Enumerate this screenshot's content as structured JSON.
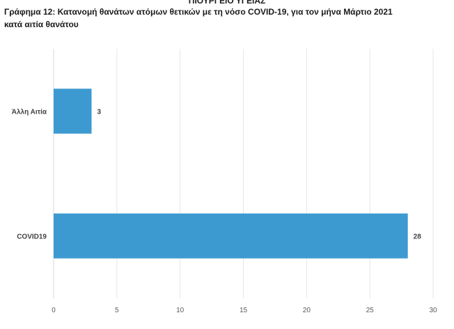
{
  "header_fragment": "ΠΙΟΥΡΓΕΙΟ ΥΓΕΙΑΣ",
  "title_line1": "Γράφημα 12: Κατανομή θανάτων ατόμων θετικών με τη νόσο COVID-19, για τον μήνα Μάρτιο 2021",
  "title_line2": "κατά αιτία θανάτου",
  "colors": {
    "bar": "#3d9ad1",
    "grid": "#e6e6e6",
    "axis": "#d9d9d9"
  },
  "chart_data": {
    "type": "bar",
    "orientation": "horizontal",
    "categories": [
      "Άλλη Αιτία",
      "COVID19"
    ],
    "values": [
      3,
      28
    ],
    "data_labels": [
      "3",
      "28"
    ],
    "xlim": [
      0,
      30
    ],
    "xticks": [
      0,
      5,
      10,
      15,
      20,
      25,
      30
    ],
    "xtick_labels": [
      "0",
      "5",
      "10",
      "15",
      "20",
      "25",
      "30"
    ],
    "grid": true,
    "legend": "none",
    "title": "Γράφημα 12: Κατανομή θανάτων ατόμων θετικών με τη νόσο COVID-19, για τον μήνα Μάρτιο 2021 κατά αιτία θανάτου",
    "xlabel": "",
    "ylabel": ""
  }
}
